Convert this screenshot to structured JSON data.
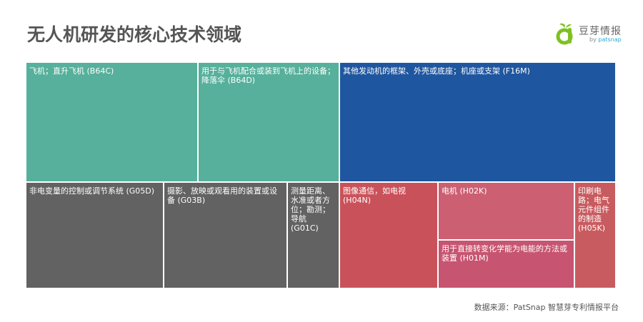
{
  "header": {
    "title": "无人机研发的核心技术领域"
  },
  "logo": {
    "name_cn": "豆芽情报",
    "by": "by ",
    "brand": "patsnap"
  },
  "chart_data": {
    "type": "treemap",
    "title": "无人机研发的核心技术领域",
    "items": [
      {
        "label": "飞机；直升飞机 (B64C)",
        "code": "B64C",
        "value": 39.7,
        "group": "B64",
        "color": "#56b09c"
      },
      {
        "label": "用于与飞机配合或装到飞机上的设备；降落伞 (B64D)",
        "code": "B64D",
        "value": 32.5,
        "group": "B64",
        "color": "#56b09c"
      },
      {
        "label": "其他发动机的框架、外壳或底座；机座或支架 (F16M)",
        "code": "F16M",
        "value": 63.9,
        "group": "F16",
        "color": "#1f56a0"
      },
      {
        "label": "非电变量的控制或调节系统 (G05D)",
        "code": "G05D",
        "value": 28.1,
        "group": "G",
        "color": "#626262"
      },
      {
        "label": "摄影、放映或观看用的装置或设备 (G03B)",
        "code": "G03B",
        "value": 25.1,
        "group": "G",
        "color": "#626262"
      },
      {
        "label": "测量距离、水准或者方位；勘测；导航 (G01C)",
        "code": "G01C",
        "value": 10.4,
        "group": "G",
        "color": "#626262"
      },
      {
        "label": "图像通信，如电视 (H04N)",
        "code": "H04N",
        "value": 20.0,
        "group": "H",
        "color": "#c9525a"
      },
      {
        "label": "电机 (H02K)",
        "code": "H02K",
        "value": 14.9,
        "group": "H",
        "color": "#cc5f72"
      },
      {
        "label": "用于直接转变化学能为电能的方法或装置 (H01M)",
        "code": "H01M",
        "value": 12.5,
        "group": "H",
        "color": "#c75470"
      },
      {
        "label": "印刷电路；电气元件组件的制造 (H05K)",
        "code": "H05K",
        "value": 8.2,
        "group": "H",
        "color": "#c85b5f"
      }
    ]
  },
  "footer": {
    "source": "数据来源：PatSnap 智慧芽专利情报平台"
  }
}
